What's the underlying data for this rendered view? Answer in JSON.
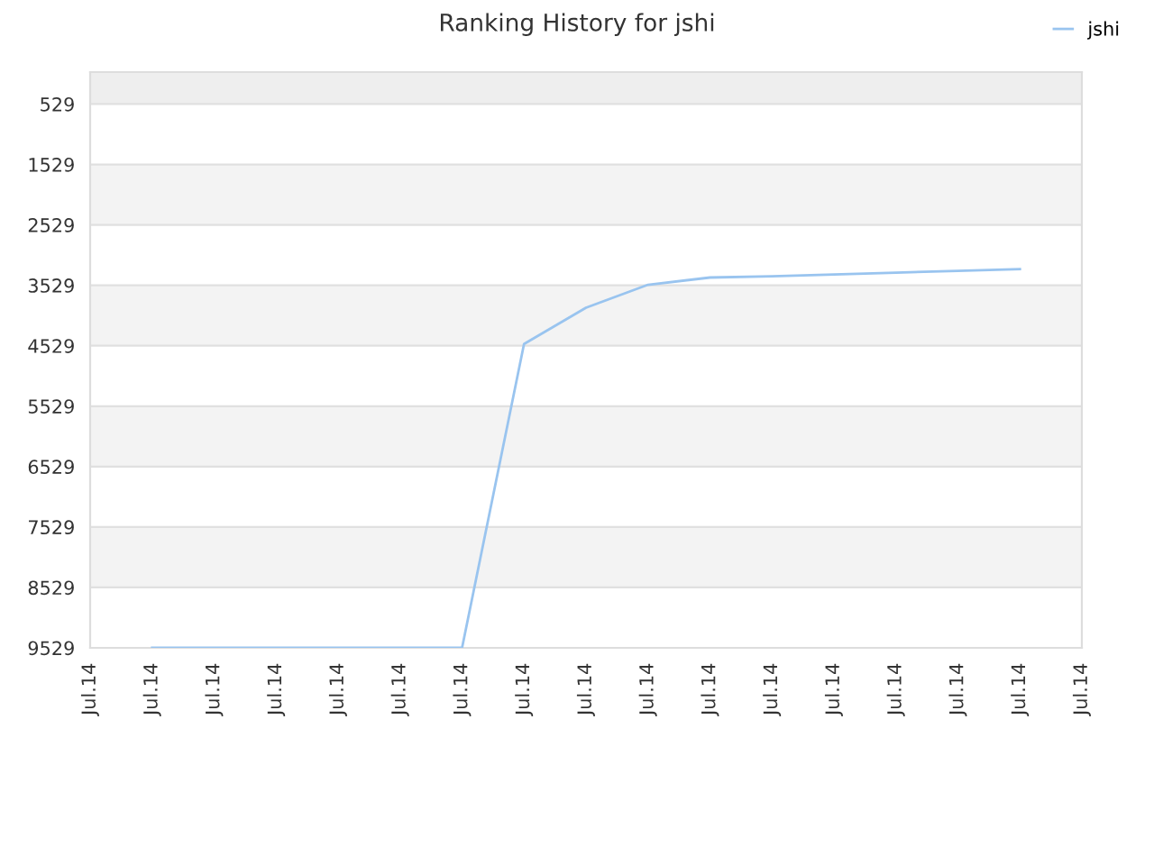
{
  "chart_data": {
    "type": "line",
    "title": "Ranking History for jshi",
    "categories": [
      "Jul.14",
      "Jul.14",
      "Jul.14",
      "Jul.14",
      "Jul.14",
      "Jul.14",
      "Jul.14",
      "Jul.14",
      "Jul.14",
      "Jul.14",
      "Jul.14",
      "Jul.14",
      "Jul.14",
      "Jul.14",
      "Jul.14",
      "Jul.14",
      "Jul.14"
    ],
    "ylim": [
      9529,
      0
    ],
    "yticks": [
      529,
      1529,
      2529,
      3529,
      4529,
      5529,
      6529,
      7529,
      8529,
      9529
    ],
    "grid": "y",
    "legend": "top right",
    "marker": "none",
    "line_style": "solid",
    "bands": [
      {
        "axis": "y",
        "from": 0,
        "to": 529,
        "color": "#eeeeee"
      },
      {
        "axis": "y",
        "from": 1529,
        "to": 2529,
        "color": "#f3f3f3"
      },
      {
        "axis": "y",
        "from": 3529,
        "to": 4529,
        "color": "#f3f3f3"
      },
      {
        "axis": "y",
        "from": 5529,
        "to": 6529,
        "color": "#f3f3f3"
      },
      {
        "axis": "y",
        "from": 7529,
        "to": 8529,
        "color": "#f3f3f3"
      }
    ],
    "series": [
      {
        "name": "jshi",
        "color": "#99c4ef",
        "values": [
          null,
          9529,
          9529,
          9529,
          9529,
          9529,
          9529,
          4500,
          3900,
          3520,
          3400,
          3380,
          3350,
          3320,
          3290,
          3260,
          null
        ]
      }
    ]
  }
}
